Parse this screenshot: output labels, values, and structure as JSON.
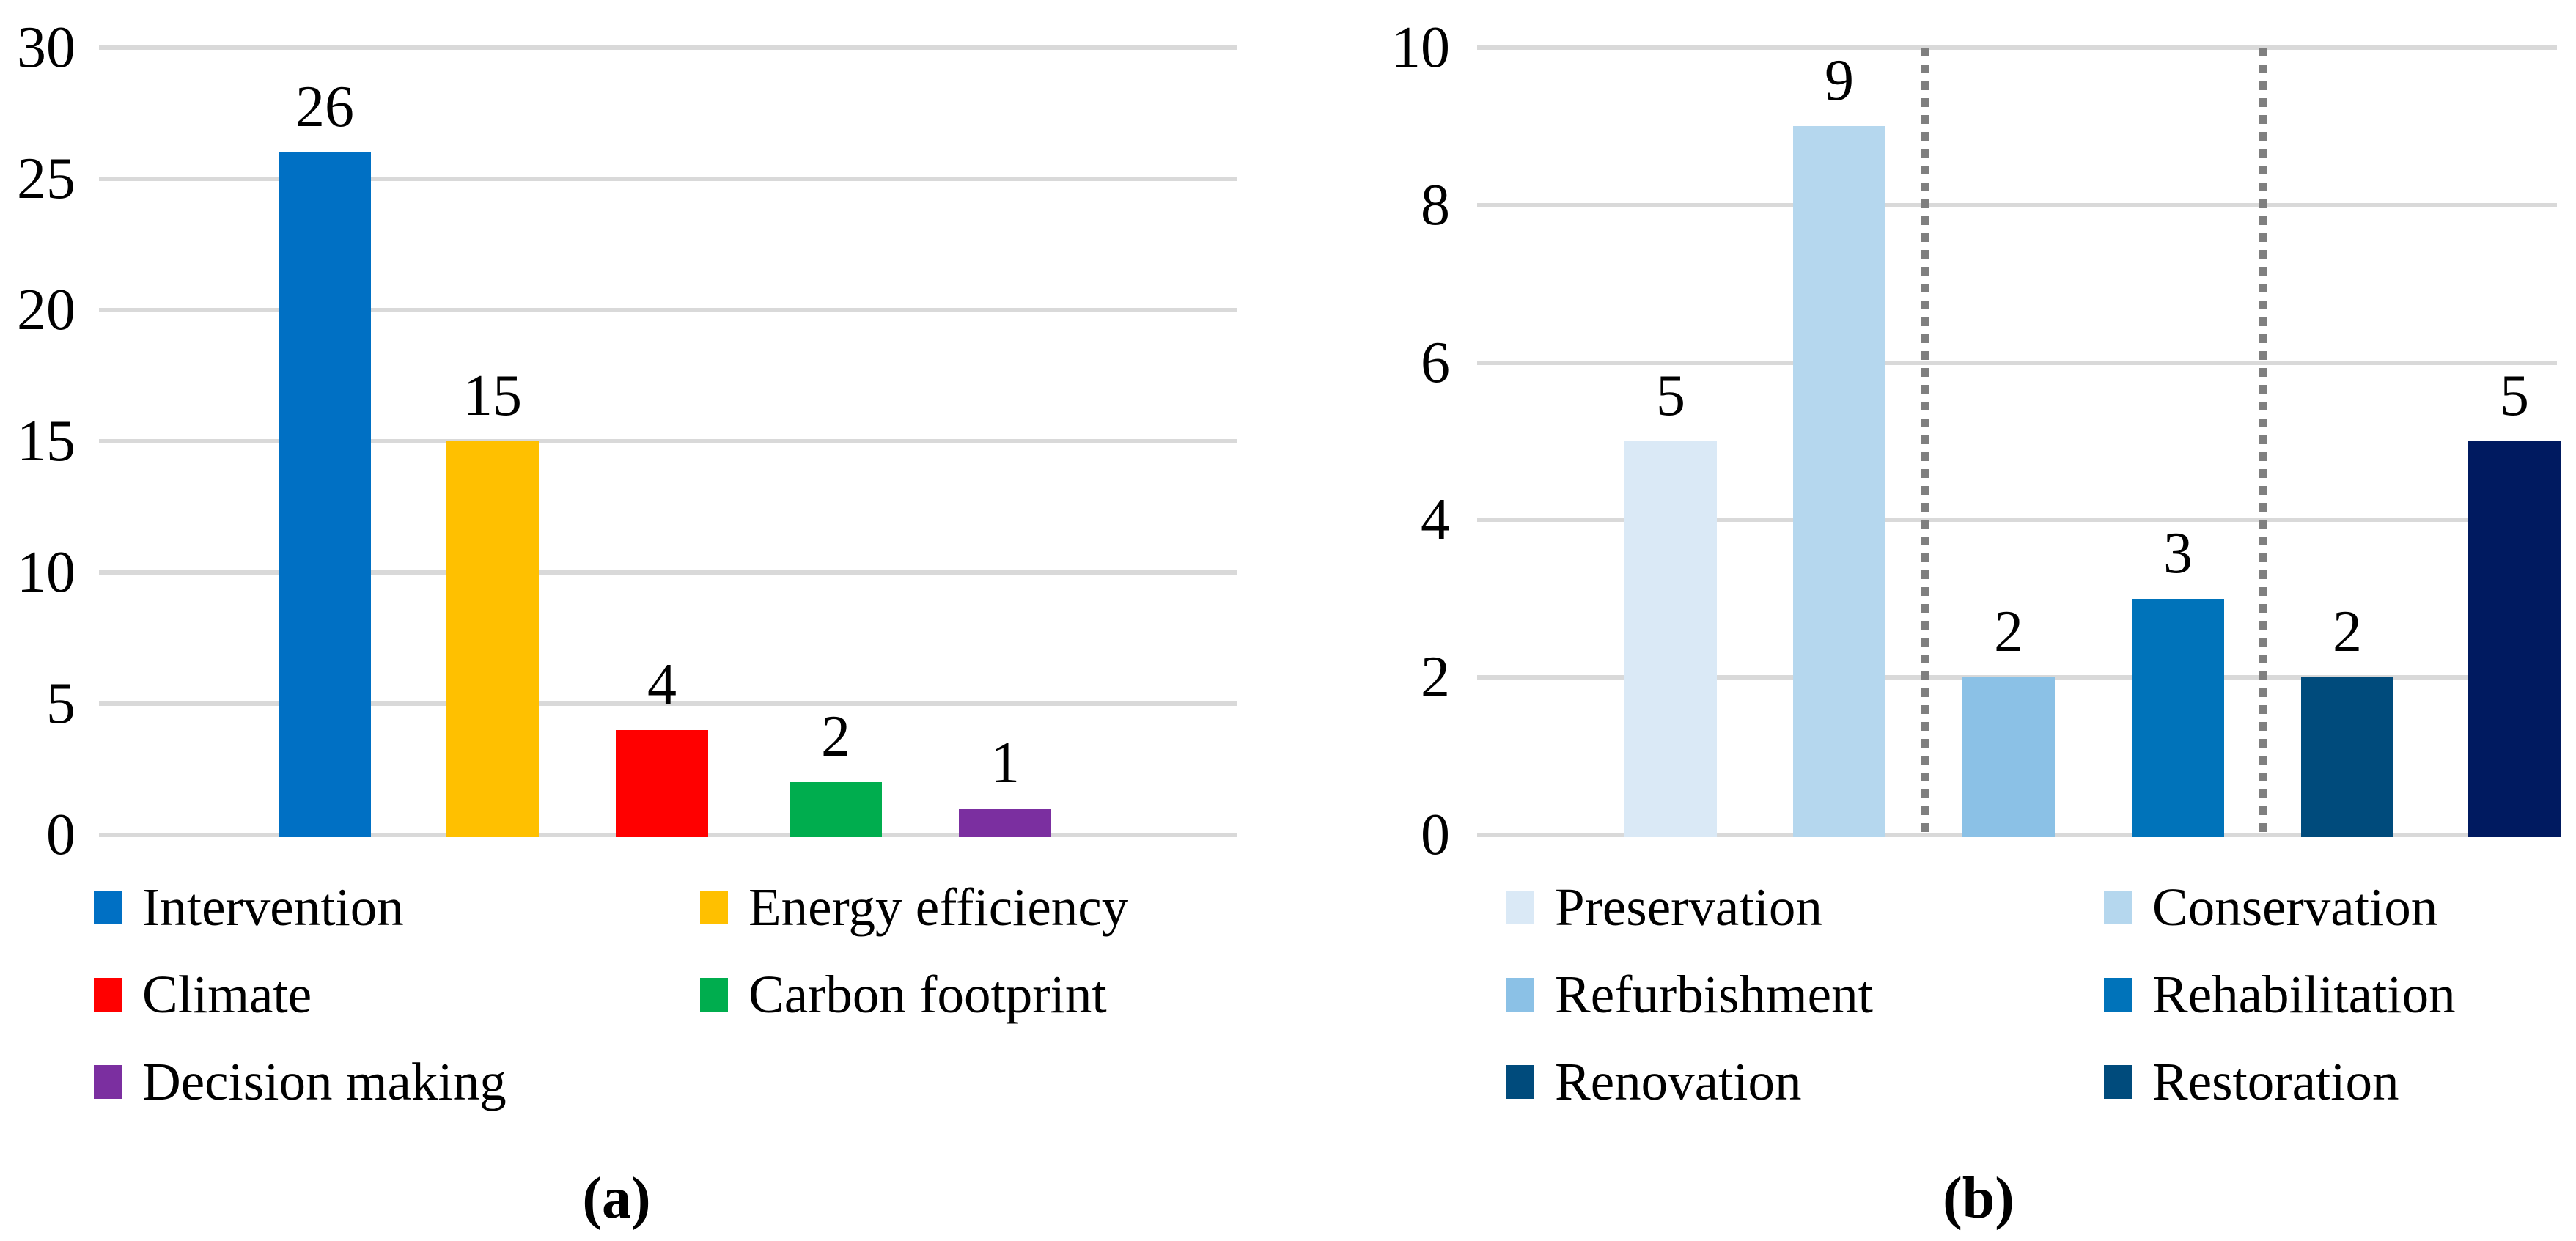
{
  "styles": {
    "background": "#FFFFFF",
    "text_color": "#000000",
    "gridline_color": "#D9D9D9",
    "separator_color": "#7F7F7F"
  },
  "chart_data": [
    {
      "panel": "a",
      "type": "bar",
      "caption": "(a)",
      "categories": [
        "Intervention",
        "Energy efficiency",
        "Climate",
        "Carbon footprint",
        "Decision making"
      ],
      "values": [
        26,
        15,
        4,
        2,
        1
      ],
      "data_labels": [
        "26",
        "15",
        "4",
        "2",
        "1"
      ],
      "bar_colors": [
        "#0070C4",
        "#FFC000",
        "#FF0000",
        "#00AD4E",
        "#7B2FA0"
      ],
      "legend_colors": [
        "#0070C4",
        "#FFC000",
        "#FF0000",
        "#00AD4E",
        "#7B2FA0"
      ],
      "ylim": [
        0,
        30
      ],
      "yticks": [
        "0",
        "5",
        "10",
        "15",
        "20",
        "25",
        "30"
      ],
      "grid": true,
      "legend_position": "bottom",
      "legend_columns": 2
    },
    {
      "panel": "b",
      "type": "bar",
      "caption": "(b)",
      "categories": [
        "Preservation",
        "Conservation",
        "Refurbishment",
        "Rehabilitation",
        "Renovation",
        "Restoration"
      ],
      "values": [
        5,
        9,
        2,
        3,
        2,
        5
      ],
      "data_labels": [
        "5",
        "9",
        "2",
        "3",
        "2",
        "5"
      ],
      "bar_colors": [
        "#DAE9F6",
        "#B5D7EE",
        "#8BC1E6",
        "#0073BA",
        "#004B7C",
        "#001A60"
      ],
      "legend_colors": [
        "#DAE9F6",
        "#B5D7EE",
        "#8BC1E6",
        "#0073BA",
        "#004B7C",
        "#004B7C"
      ],
      "ylim": [
        0,
        10
      ],
      "yticks": [
        "0",
        "2",
        "4",
        "6",
        "8",
        "10"
      ],
      "grid": true,
      "legend_position": "bottom",
      "legend_columns": 2,
      "separators_after_index": [
        1,
        3
      ]
    }
  ]
}
